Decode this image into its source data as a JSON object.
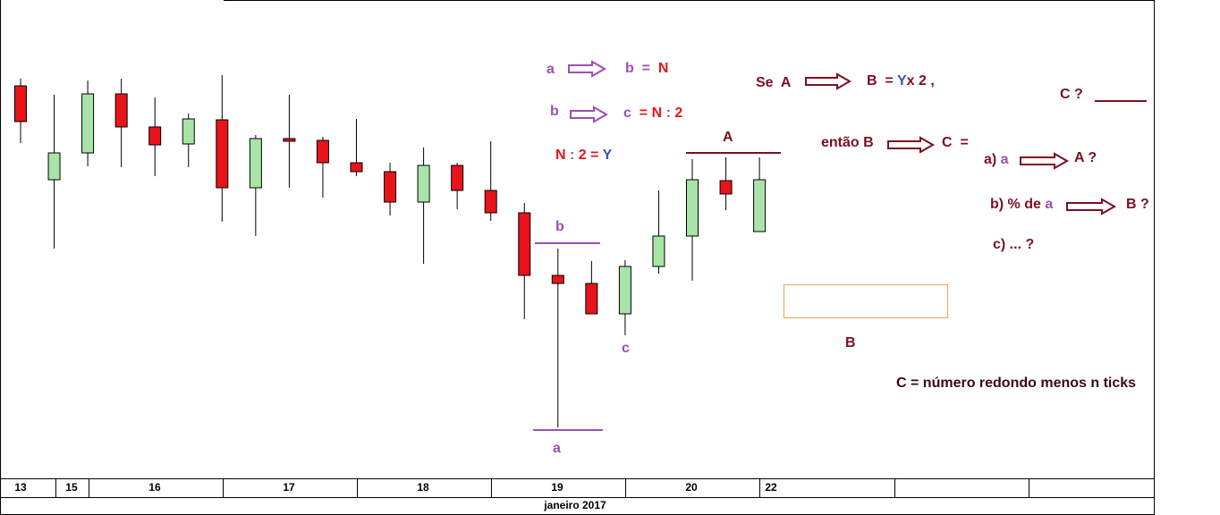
{
  "chart_data": {
    "type": "candlestick",
    "open": [
      439,
      334,
      364,
      430,
      393,
      374,
      401,
      325,
      380,
      378,
      353,
      343,
      309,
      350,
      322,
      297,
      227,
      218,
      184,
      237,
      271,
      333,
      276
    ],
    "high": [
      447,
      429,
      445,
      447,
      426,
      408,
      451,
      384,
      429,
      382,
      402,
      353,
      370,
      353,
      377,
      308,
      257,
      243,
      244,
      322,
      357,
      359,
      359
    ],
    "low": [
      375,
      257,
      349,
      348,
      338,
      348,
      287,
      271,
      325,
      314,
      338,
      294,
      240,
      301,
      288,
      178,
      57,
      184,
      160,
      229,
      221,
      300,
      276
    ],
    "close": [
      399,
      364,
      430,
      393,
      373,
      402,
      325,
      380,
      377,
      353,
      343,
      309,
      350,
      322,
      297,
      227,
      218,
      184,
      237,
      271,
      334,
      318,
      334
    ],
    "up_color": "#a8e4a8",
    "down_color": "#e8141a",
    "ylim": [
      0,
      535
    ],
    "x_labels": [
      "13",
      "15",
      "16",
      "17",
      "18",
      "19",
      "20",
      "22"
    ],
    "x_axis_title": "janeiro 2017"
  },
  "annotations": [
    {
      "parts": [
        {
          "text": "a",
          "color": "#9b4fb0"
        }
      ]
    },
    {
      "parts": [
        {
          "text": "b  =  ",
          "color": "#9b4fb0"
        },
        {
          "text": "N",
          "color": "#e8141a"
        }
      ]
    },
    {
      "parts": [
        {
          "text": "b",
          "color": "#9b4fb0"
        }
      ]
    },
    {
      "parts": [
        {
          "text": "c  ",
          "color": "#9b4fb0"
        },
        {
          "text": "= N",
          "color": "#e8141a"
        },
        {
          "text": " : ",
          "color": "#9b4fb0"
        },
        {
          "text": "2",
          "color": "#e8141a"
        }
      ]
    },
    {
      "parts": [
        {
          "text": "N",
          "color": "#e8141a"
        },
        {
          "text": " : ",
          "color": "#9b4fb0"
        },
        {
          "text": "2 = ",
          "color": "#e8141a"
        },
        {
          "text": "Y",
          "color": "#3f51b5"
        }
      ]
    },
    {
      "parts": [
        {
          "text": "Se  A",
          "color": "#7a1022"
        }
      ]
    },
    {
      "parts": [
        {
          "text": "B  = ",
          "color": "#7a1022"
        },
        {
          "text": "Y",
          "color": "#3f51b5"
        },
        {
          "text": "x 2 ,",
          "color": "#7a1022"
        }
      ]
    },
    {
      "parts": [
        {
          "text": "A",
          "color": "#7a1022"
        }
      ]
    },
    {
      "parts": [
        {
          "text": "C ?",
          "color": "#7a1022"
        }
      ]
    },
    {
      "parts": [
        {
          "text": "então B",
          "color": "#7a1022"
        }
      ]
    },
    {
      "parts": [
        {
          "text": "C  =",
          "color": "#7a1022"
        }
      ]
    },
    {
      "parts": [
        {
          "text": "a) ",
          "color": "#7a1022"
        },
        {
          "text": "a",
          "color": "#9b4fb0"
        }
      ]
    },
    {
      "parts": [
        {
          "text": "A ?",
          "color": "#7a1022"
        }
      ]
    },
    {
      "parts": [
        {
          "text": "b) % de ",
          "color": "#7a1022"
        },
        {
          "text": "a",
          "color": "#9b4fb0"
        }
      ]
    },
    {
      "parts": [
        {
          "text": "B ?",
          "color": "#7a1022"
        }
      ]
    },
    {
      "parts": [
        {
          "text": "c) ... ?",
          "color": "#7a1022"
        }
      ]
    },
    {
      "parts": [
        {
          "text": "b",
          "color": "#9b4fb0"
        }
      ]
    },
    {
      "parts": [
        {
          "text": "c",
          "color": "#9b4fb0"
        }
      ]
    },
    {
      "parts": [
        {
          "text": "a",
          "color": "#9b4fb0"
        }
      ]
    },
    {
      "parts": [
        {
          "text": "B",
          "color": "#7a1022"
        }
      ]
    },
    {
      "parts": [
        {
          "text": "C = número redondo menos n ticks",
          "color": "#3a0a14"
        }
      ]
    }
  ]
}
